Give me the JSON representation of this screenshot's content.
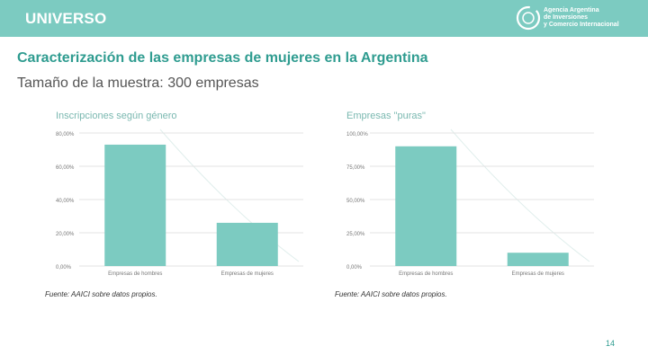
{
  "header": {
    "section": "UNIVERSO",
    "logo_lines": [
      "Agencia Argentina",
      "de Inversiones",
      "y Comercio Internacional"
    ]
  },
  "title": "Caracterización de las empresas de mujeres en la Argentina",
  "subtitle": "Tamaño de la muestra: 300 empresas",
  "colors": {
    "bar": "#7ccbc1",
    "accent": "#2f9c90",
    "grid": "#e3e3e3"
  },
  "chart_data": [
    {
      "type": "bar",
      "title": "Inscripciones según género",
      "categories": [
        "Empresas de hombres",
        "Empresas de mujeres"
      ],
      "values": [
        73,
        26
      ],
      "ylim": [
        0,
        80
      ],
      "yticks": [
        0,
        20,
        40,
        60,
        80
      ],
      "ytick_labels": [
        "0,00%",
        "20,00%",
        "40,00%",
        "60,00%",
        "80,00%"
      ],
      "xlabel": "",
      "ylabel": "",
      "grid": true,
      "source": "Fuente: AAICI sobre datos propios."
    },
    {
      "type": "bar",
      "title": "Empresas \"puras\"",
      "categories": [
        "Empresas de hombres",
        "Empresas de mujeres"
      ],
      "values": [
        90,
        10
      ],
      "ylim": [
        0,
        100
      ],
      "yticks": [
        0,
        25,
        50,
        75,
        100
      ],
      "ytick_labels": [
        "0,00%",
        "25,00%",
        "50,00%",
        "75,00%",
        "100,00%"
      ],
      "xlabel": "",
      "ylabel": "",
      "grid": true,
      "source": "Fuente: AAICI sobre datos propios."
    }
  ],
  "page_number": "14"
}
